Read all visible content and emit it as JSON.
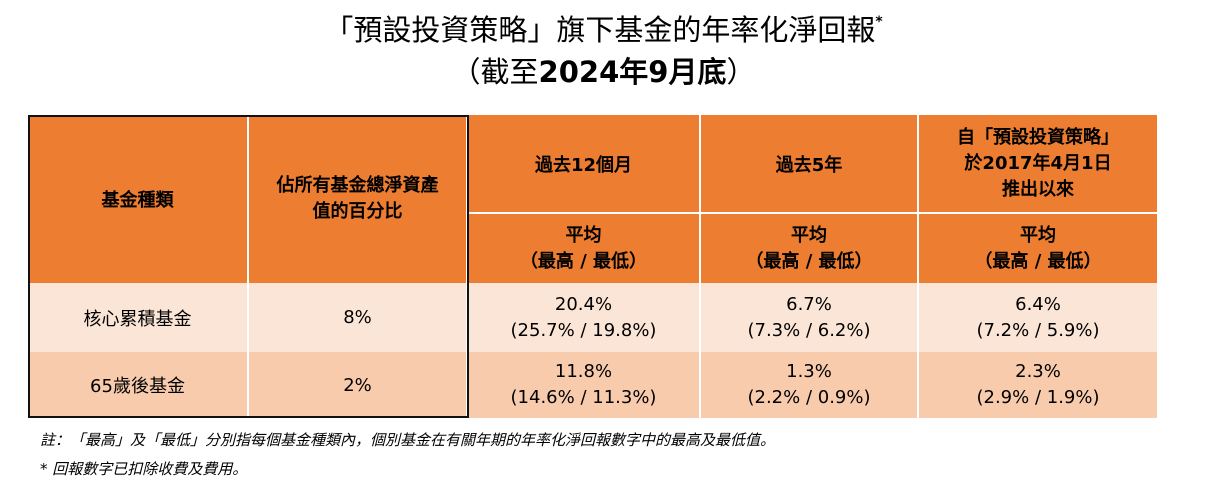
{
  "title": {
    "line1": "「預設投資策略」旗下基金的年率化淨回報",
    "line1_mark": "*",
    "line2_open": "（截至",
    "line2_date": "2024年9月底",
    "line2_close": "）"
  },
  "table": {
    "col_fund_type": "基金種類",
    "col_percent": [
      "佔所有基金總淨資產",
      "值的百分比"
    ],
    "col_12m": "過去12個月",
    "col_5y": "過去5年",
    "col_since": [
      "自「預設投資策略」",
      "於2017年4月1日",
      "推出以來"
    ],
    "avg_label": "平均",
    "hi_lo_label": "（最高 / 最低）",
    "rows": [
      {
        "fund": "核心累積基金",
        "percent": "8%",
        "m12": "20.4%",
        "m12_range": "(25.7% / 19.8%)",
        "y5": "6.7%",
        "y5_range": "(7.3% / 6.2%)",
        "since": "6.4%",
        "since_range": "(7.2% / 5.9%)"
      },
      {
        "fund": "65歲後基金",
        "percent": "2%",
        "m12": "11.8%",
        "m12_range": "(14.6% / 11.3%)",
        "y5": "1.3%",
        "y5_range": "(2.2% / 0.9%)",
        "since": "2.3%",
        "since_range": "(2.9% / 1.9%)"
      }
    ]
  },
  "notes": {
    "note1": "註：「最高」及「最低」分別指每個基金種類內，個別基金在有關年期的年率化淨回報數字中的最高及最低值。",
    "note2": "* 回報數字已扣除收費及費用。"
  },
  "colors": {
    "header": "#ED7D31",
    "row1": "#FBE5D6",
    "row2": "#F8CBAD"
  }
}
